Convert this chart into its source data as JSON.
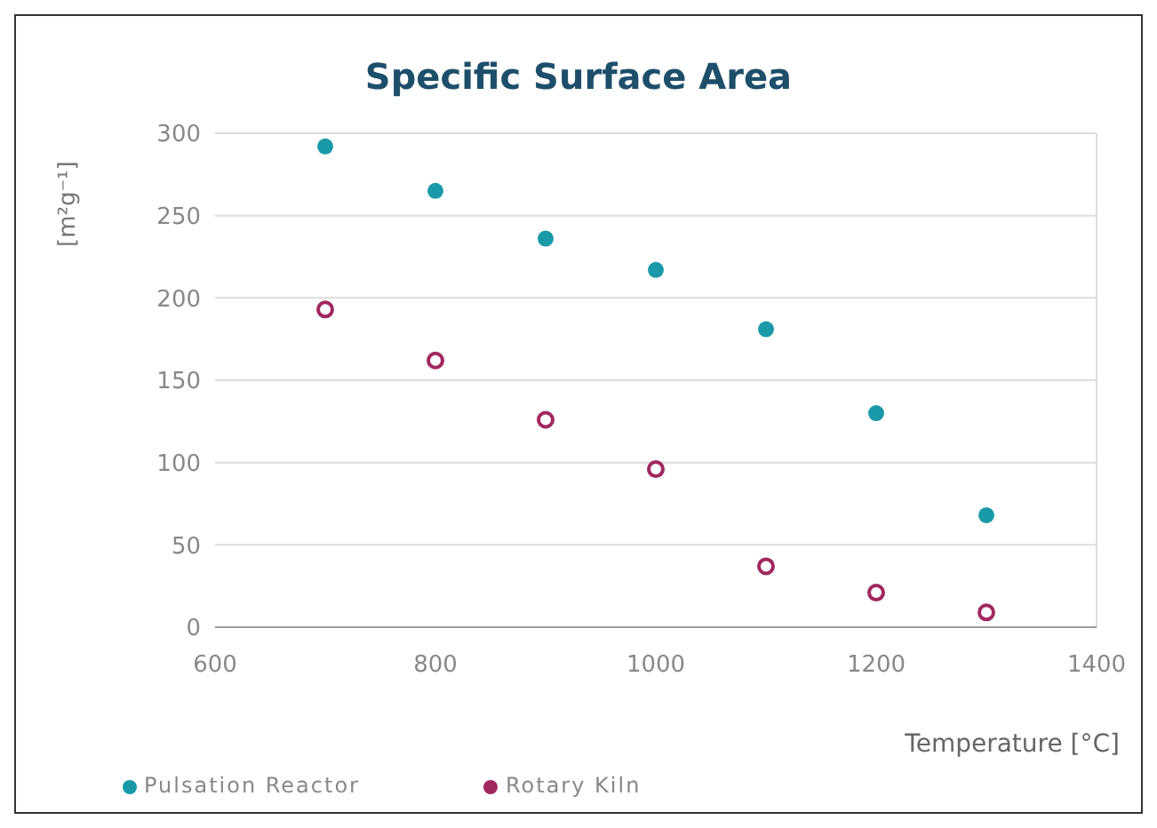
{
  "chart_data": {
    "type": "scatter",
    "title": "Specific Surface Area",
    "xlabel": "Temperature [°C]",
    "ylabel": "[m²g⁻¹]",
    "x": [
      700,
      800,
      900,
      1000,
      1100,
      1200,
      1300
    ],
    "series": [
      {
        "name": "Pulsation Reactor",
        "color": "#1a9aa8",
        "values": [
          292,
          265,
          236,
          217,
          181,
          130,
          68
        ]
      },
      {
        "name": "Rotary Kiln",
        "color": "#a0285f",
        "values": [
          193,
          162,
          126,
          96,
          37,
          21,
          9
        ]
      }
    ],
    "xlim": [
      600,
      1400
    ],
    "xticks": [
      600,
      800,
      1000,
      1200,
      1400
    ],
    "ylim": [
      0,
      300
    ],
    "yticks": [
      0,
      50,
      100,
      150,
      200,
      250,
      300
    ],
    "grid": "y",
    "legend": "bottom",
    "marker": "circle"
  }
}
